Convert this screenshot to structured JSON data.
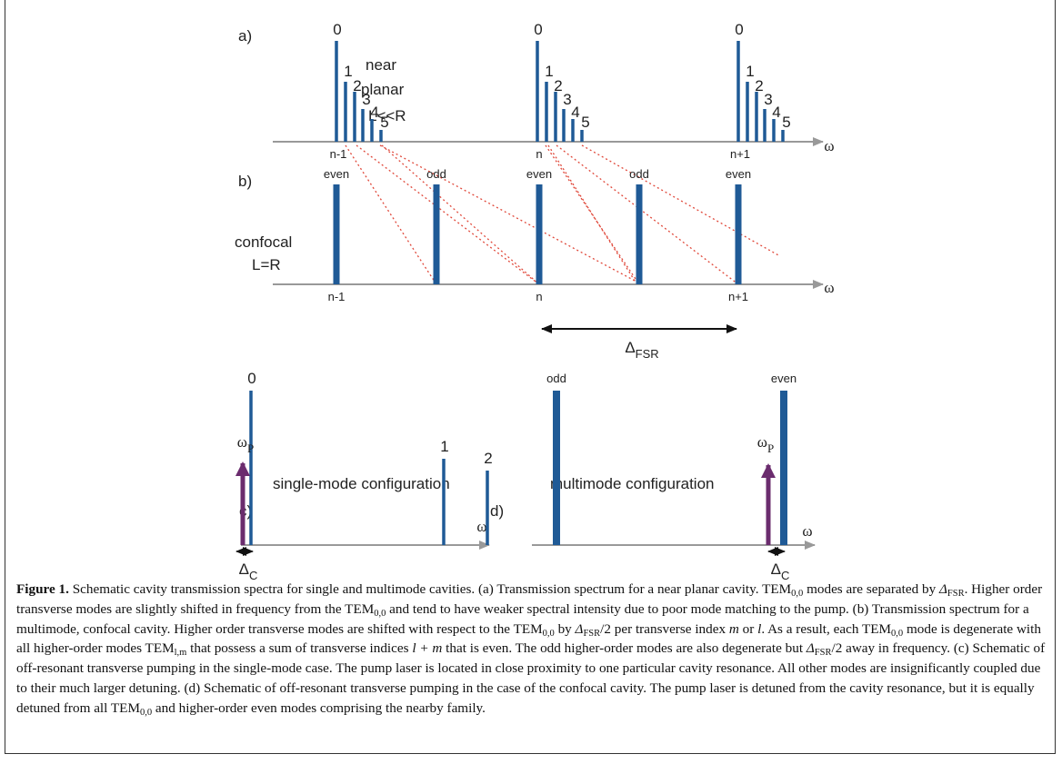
{
  "figure": {
    "panel_a": {
      "label": "a)",
      "description": [
        "near",
        "planar",
        "L<<R"
      ],
      "axis_symbol": "ω",
      "groups": [
        {
          "mode_labels": [
            "0",
            "1",
            "2",
            "3",
            "4",
            "5"
          ],
          "axis_label": "n-1"
        },
        {
          "mode_labels": [
            "0",
            "1",
            "2",
            "3",
            "4",
            "5"
          ],
          "axis_label": "n"
        },
        {
          "mode_labels": [
            "0",
            "1",
            "2",
            "3",
            "4",
            "5"
          ],
          "axis_label": "n+1"
        }
      ]
    },
    "panel_b": {
      "label": "b)",
      "description": [
        "confocal",
        "L=R"
      ],
      "axis_symbol": "ω",
      "parity_labels": [
        "even",
        "odd",
        "even",
        "odd",
        "even"
      ],
      "axis_labels": [
        "n-1",
        "n",
        "n+1"
      ],
      "spacing_label": {
        "main": "Δ",
        "sub": "FSR"
      }
    },
    "panel_c": {
      "label": "c)",
      "title": "single-mode configuration",
      "axis_symbol": "ω",
      "mode_labels": [
        "0",
        "1",
        "2"
      ],
      "pump_label": {
        "main": "ω",
        "sub": "P"
      },
      "detuning_label": {
        "main": "Δ",
        "sub": "C"
      }
    },
    "panel_d": {
      "label": "d)",
      "title": "multimode configuration",
      "axis_symbol": "ω",
      "parity_labels": [
        "odd",
        "even"
      ],
      "pump_label": {
        "main": "ω",
        "sub": "P"
      },
      "detuning_label": {
        "main": "Δ",
        "sub": "C"
      }
    }
  },
  "caption": {
    "runs": [
      {
        "bold": "Figure 1."
      },
      {
        "text": " Schematic cavity transmission spectra for single and multimode cavities. (a) Transmission spectrum for a near planar cavity. TEM"
      },
      {
        "sub": "0,0"
      },
      {
        "text": " modes are separated by "
      },
      {
        "italic": "Δ"
      },
      {
        "sub": "FSR"
      },
      {
        "text": ". Higher order transverse modes are slightly shifted in frequency from the TEM"
      },
      {
        "sub": "0,0"
      },
      {
        "text": " and tend to have weaker spectral intensity due to poor mode matching to the pump. (b) Transmission spectrum for a multimode, confocal cavity. Higher order transverse modes are shifted with respect to the TEM"
      },
      {
        "sub": "0,0"
      },
      {
        "text": " by "
      },
      {
        "italic": "Δ"
      },
      {
        "sub": "FSR"
      },
      {
        "text": "/2 per transverse index "
      },
      {
        "italic": "m"
      },
      {
        "text": " or "
      },
      {
        "italic": "l"
      },
      {
        "text": ". As a result, each TEM"
      },
      {
        "sub": "0,0"
      },
      {
        "text": " mode is degenerate with all higher-order modes TEM"
      },
      {
        "sub": "l,m"
      },
      {
        "text": " that possess a sum of transverse indices "
      },
      {
        "italic": "l + m"
      },
      {
        "text": " that is even. The odd higher-order modes are also degenerate but "
      },
      {
        "italic": "Δ"
      },
      {
        "sub": "FSR"
      },
      {
        "text": "/2 away in frequency. (c) Schematic of off-resonant transverse pumping in the single-mode case. The pump laser is located in close proximity to one particular cavity resonance. All other modes are insignificantly coupled due to their much larger detuning. (d) Schematic of off-resonant transverse pumping in the case of the confocal cavity. The pump laser is detuned from the cavity resonance, but it is equally detuned from all TEM"
      },
      {
        "sub": "0,0"
      },
      {
        "text": " and higher-order even modes comprising the nearby family."
      }
    ]
  }
}
